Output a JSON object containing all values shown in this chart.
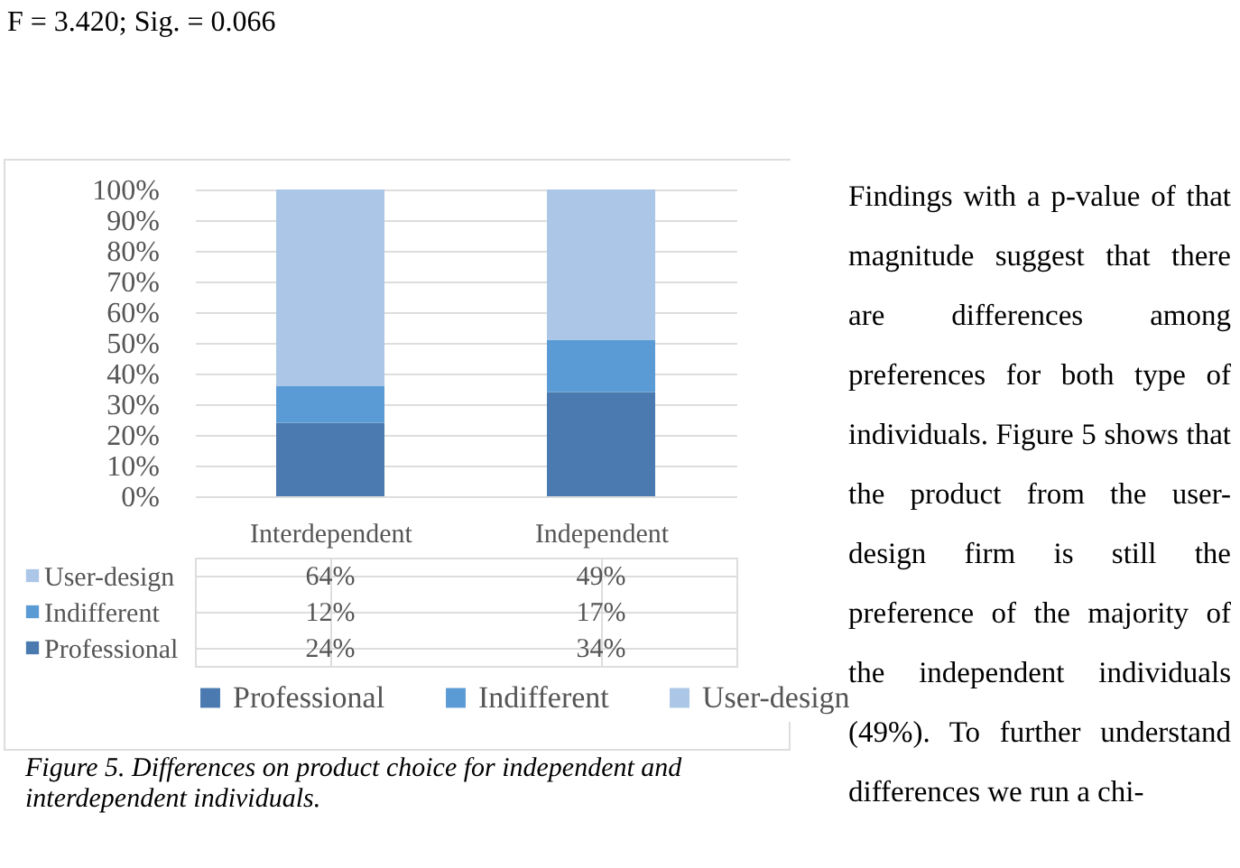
{
  "chart_data": {
    "type": "bar",
    "stacked": true,
    "title": "Figure 5. Differences on product choice for independent and interdependent individuals.",
    "categories": [
      "Interdependent",
      "Independent"
    ],
    "series": [
      {
        "name": "Professional",
        "color": "#4a7aaf",
        "values": [
          24,
          34
        ],
        "value_labels": [
          "24%",
          "34%"
        ]
      },
      {
        "name": "Indifferent",
        "color": "#5b9bd5",
        "values": [
          12,
          17
        ],
        "value_labels": [
          "12%",
          "17%"
        ]
      },
      {
        "name": "User-design",
        "color": "#abc6e6",
        "values": [
          64,
          49
        ],
        "value_labels": [
          "64%",
          "49%"
        ]
      }
    ],
    "ylim": [
      0,
      100
    ],
    "yticks": [
      {
        "value": 0,
        "label": "0%"
      },
      {
        "value": 10,
        "label": "10%"
      },
      {
        "value": 20,
        "label": "20%"
      },
      {
        "value": 30,
        "label": "30%"
      },
      {
        "value": 40,
        "label": "40%"
      },
      {
        "value": 50,
        "label": "50%"
      },
      {
        "value": 60,
        "label": "60%"
      },
      {
        "value": 70,
        "label": "70%"
      },
      {
        "value": 80,
        "label": "80%"
      },
      {
        "value": 90,
        "label": "90%"
      },
      {
        "value": 100,
        "label": "100%"
      }
    ],
    "grid": "y",
    "legend": "bottom",
    "annotations": [
      "F = 3.420; Sig. = 0.066",
      "Findings with a p-value of that magnitude suggest that there are differences among preferences for both type of individuals. Figure 5 shows that the product from the user-design firm is still the preference of the majority of the independent individuals (49%). To further understand differences we run a chi-"
    ]
  }
}
